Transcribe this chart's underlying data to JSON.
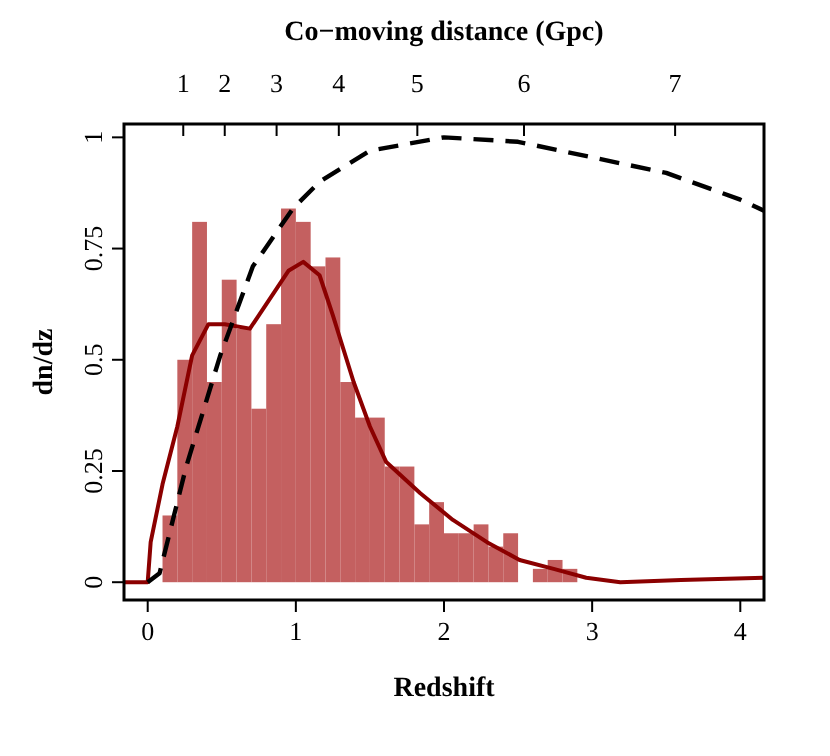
{
  "chart_data": {
    "type": "histogram",
    "xlabel": "Redshift",
    "ylabel": "dn/dz",
    "x2label": "Co−moving distance (Gpc)",
    "bins": [
      0.1,
      0.2,
      0.3,
      0.4,
      0.5,
      0.6,
      0.7,
      0.8,
      0.9,
      1.0,
      1.1,
      1.2,
      1.3,
      1.4,
      1.5,
      1.6,
      1.7,
      1.8,
      1.9,
      2.0,
      2.1,
      2.2,
      2.3,
      2.4,
      2.5,
      2.6,
      2.7,
      2.8,
      2.9
    ],
    "values": [
      0.15,
      0.5,
      0.81,
      0.45,
      0.68,
      0.57,
      0.39,
      0.58,
      0.84,
      0.81,
      0.71,
      0.73,
      0.45,
      0.37,
      0.37,
      0.26,
      0.26,
      0.13,
      0.18,
      0.11,
      0.11,
      0.13,
      0.08,
      0.11,
      0,
      0.03,
      0.05,
      0.03
    ],
    "color": "#c46060",
    "series": [
      {
        "type": "line",
        "color": "#8b0000",
        "line_style": "solid",
        "x": [
          -0.16,
          0,
          0.02,
          0.1,
          0.2,
          0.3,
          0.41,
          0.52,
          0.69,
          0.85,
          0.95,
          1.05,
          1.16,
          1.25,
          1.39,
          1.5,
          1.61,
          1.84,
          2.06,
          2.29,
          2.51,
          2.74,
          2.96,
          3.19,
          3.6,
          4.16
        ],
        "values": [
          0,
          0,
          0.09,
          0.22,
          0.35,
          0.51,
          0.58,
          0.58,
          0.57,
          0.65,
          0.7,
          0.72,
          0.69,
          0.6,
          0.45,
          0.35,
          0.27,
          0.2,
          0.14,
          0.09,
          0.05,
          0.03,
          0.01,
          0,
          0.005,
          0.01
        ]
      },
      {
        "type": "line",
        "color": "#000000",
        "line_style": "dashed",
        "x": [
          0,
          0.08,
          0.26,
          0.49,
          0.71,
          0.98,
          1.16,
          1.5,
          2.0,
          2.5,
          3.0,
          3.5,
          4.0,
          4.16
        ],
        "values": [
          0,
          0.02,
          0.26,
          0.51,
          0.71,
          0.84,
          0.9,
          0.97,
          1.0,
          0.99,
          0.955,
          0.92,
          0.86,
          0.835
        ]
      }
    ],
    "xlim": [
      -0.16,
      4.16
    ],
    "ylim": [
      -0.04,
      1.03
    ],
    "xticks": [
      0,
      1,
      2,
      3,
      4
    ],
    "yticks": [
      0,
      {
        "value": 0.25,
        "label": "0.25"
      },
      {
        "value": 0.5,
        "label": "0.5"
      },
      {
        "value": 0.75,
        "label": "0.75"
      },
      1
    ],
    "annotations": [
      {
        "text": "1",
        "x": 0.24
      },
      {
        "text": "2",
        "x": 0.52
      },
      {
        "text": "3",
        "x": 0.87
      },
      {
        "text": "4",
        "x": 1.29
      },
      {
        "text": "5",
        "x": 1.82
      },
      {
        "text": "6",
        "x": 2.54
      },
      {
        "text": "7",
        "x": 3.56
      }
    ],
    "grid": false
  }
}
